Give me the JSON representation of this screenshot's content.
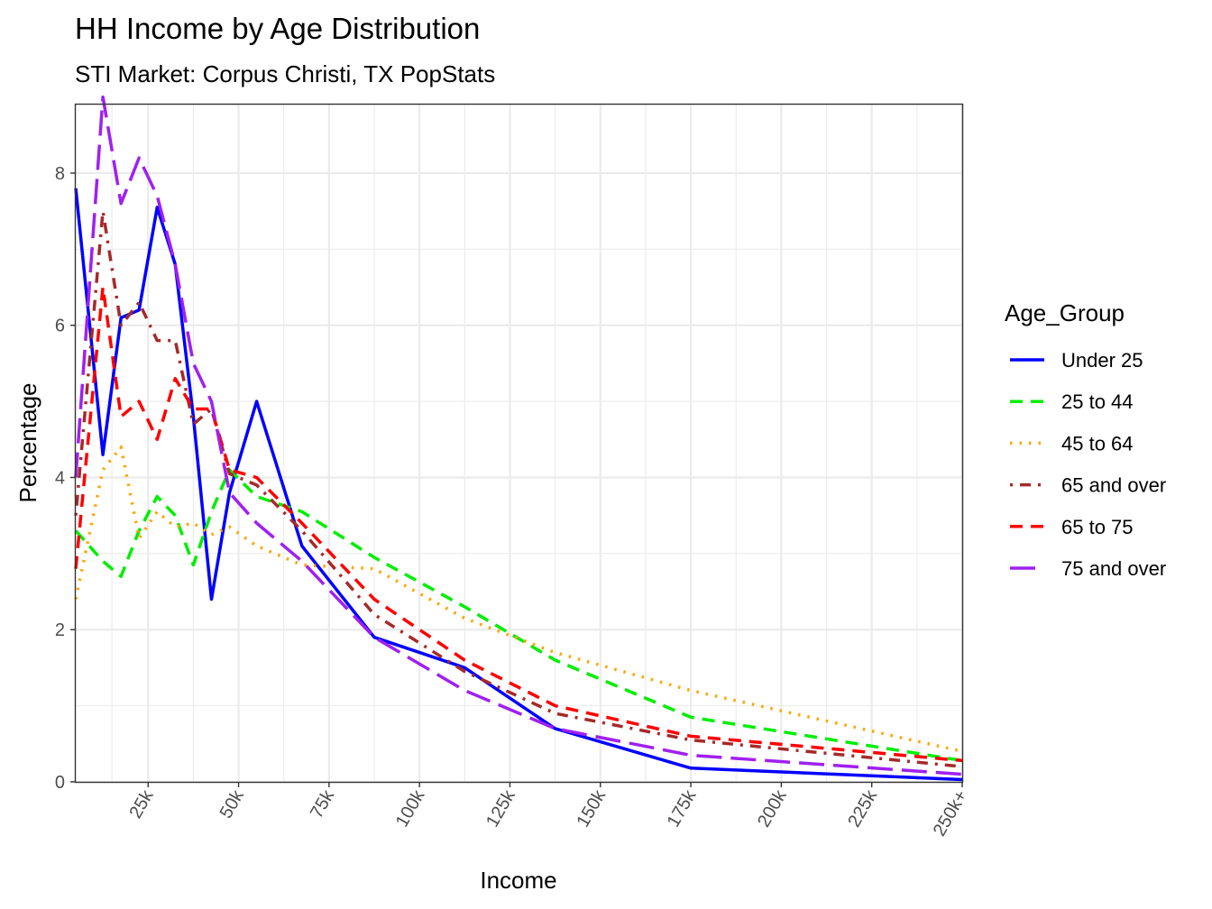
{
  "chart_data": {
    "type": "line",
    "title": "HH Income by Age Distribution",
    "subtitle": "STI Market: Corpus Christi, TX PopStats",
    "xlabel": "Income",
    "ylabel": "Percentage",
    "xlim": [
      5,
      250
    ],
    "ylim": [
      0,
      8.9
    ],
    "x_ticks": [
      25,
      50,
      75,
      100,
      125,
      150,
      175,
      200,
      225,
      250
    ],
    "x_tick_labels": [
      "25k",
      "50k",
      "75k",
      "100k",
      "125k",
      "150k",
      "175k",
      "200k",
      "225k",
      "250k+"
    ],
    "y_ticks": [
      0,
      2,
      4,
      6,
      8
    ],
    "y_tick_labels": [
      "0",
      "2",
      "4",
      "6",
      "8"
    ],
    "grid": true,
    "legend_title": "Age_Group",
    "legend_position": "right",
    "x": [
      5,
      12.5,
      17.5,
      22.5,
      27.5,
      32.5,
      37.5,
      42.5,
      47.5,
      55,
      67.5,
      87.5,
      112.5,
      137.5,
      175,
      250
    ],
    "series": [
      {
        "name": "Under 25",
        "color": "#0000ff",
        "dash": "solid",
        "values": [
          7.8,
          4.3,
          6.1,
          6.2,
          7.55,
          6.8,
          4.8,
          2.4,
          3.8,
          5.0,
          3.1,
          1.9,
          1.5,
          0.7,
          0.18,
          0.03
        ]
      },
      {
        "name": "25 to 44",
        "color": "#00ee00",
        "dash": "dashed",
        "values": [
          3.3,
          2.9,
          2.7,
          3.3,
          3.75,
          3.5,
          2.85,
          3.55,
          4.1,
          3.75,
          3.55,
          2.95,
          2.3,
          1.6,
          0.85,
          0.28
        ]
      },
      {
        "name": "45 to 64",
        "color": "#ffa500",
        "dash": "dotted",
        "values": [
          2.4,
          4.1,
          4.4,
          3.2,
          3.55,
          3.35,
          3.4,
          3.25,
          3.35,
          3.1,
          2.85,
          2.8,
          2.15,
          1.7,
          1.2,
          0.4
        ]
      },
      {
        "name": "65 and over",
        "color": "#a52a2a",
        "dash": "dotdash",
        "values": [
          3.5,
          7.5,
          6.0,
          6.3,
          5.8,
          5.8,
          4.7,
          4.9,
          4.05,
          3.9,
          3.3,
          2.2,
          1.45,
          0.9,
          0.55,
          0.2
        ]
      },
      {
        "name": "65 to 75",
        "color": "#ff0000",
        "dash": "dashed",
        "values": [
          2.8,
          6.5,
          4.8,
          5.0,
          4.5,
          5.3,
          4.9,
          4.9,
          4.1,
          4.0,
          3.4,
          2.4,
          1.6,
          1.0,
          0.6,
          0.28
        ]
      },
      {
        "name": "75 and over",
        "color": "#a020f0",
        "dash": "longdash",
        "values": [
          4.0,
          9.0,
          7.6,
          8.2,
          7.7,
          6.8,
          5.5,
          5.0,
          3.8,
          3.4,
          2.9,
          1.9,
          1.2,
          0.7,
          0.35,
          0.1
        ]
      }
    ]
  }
}
